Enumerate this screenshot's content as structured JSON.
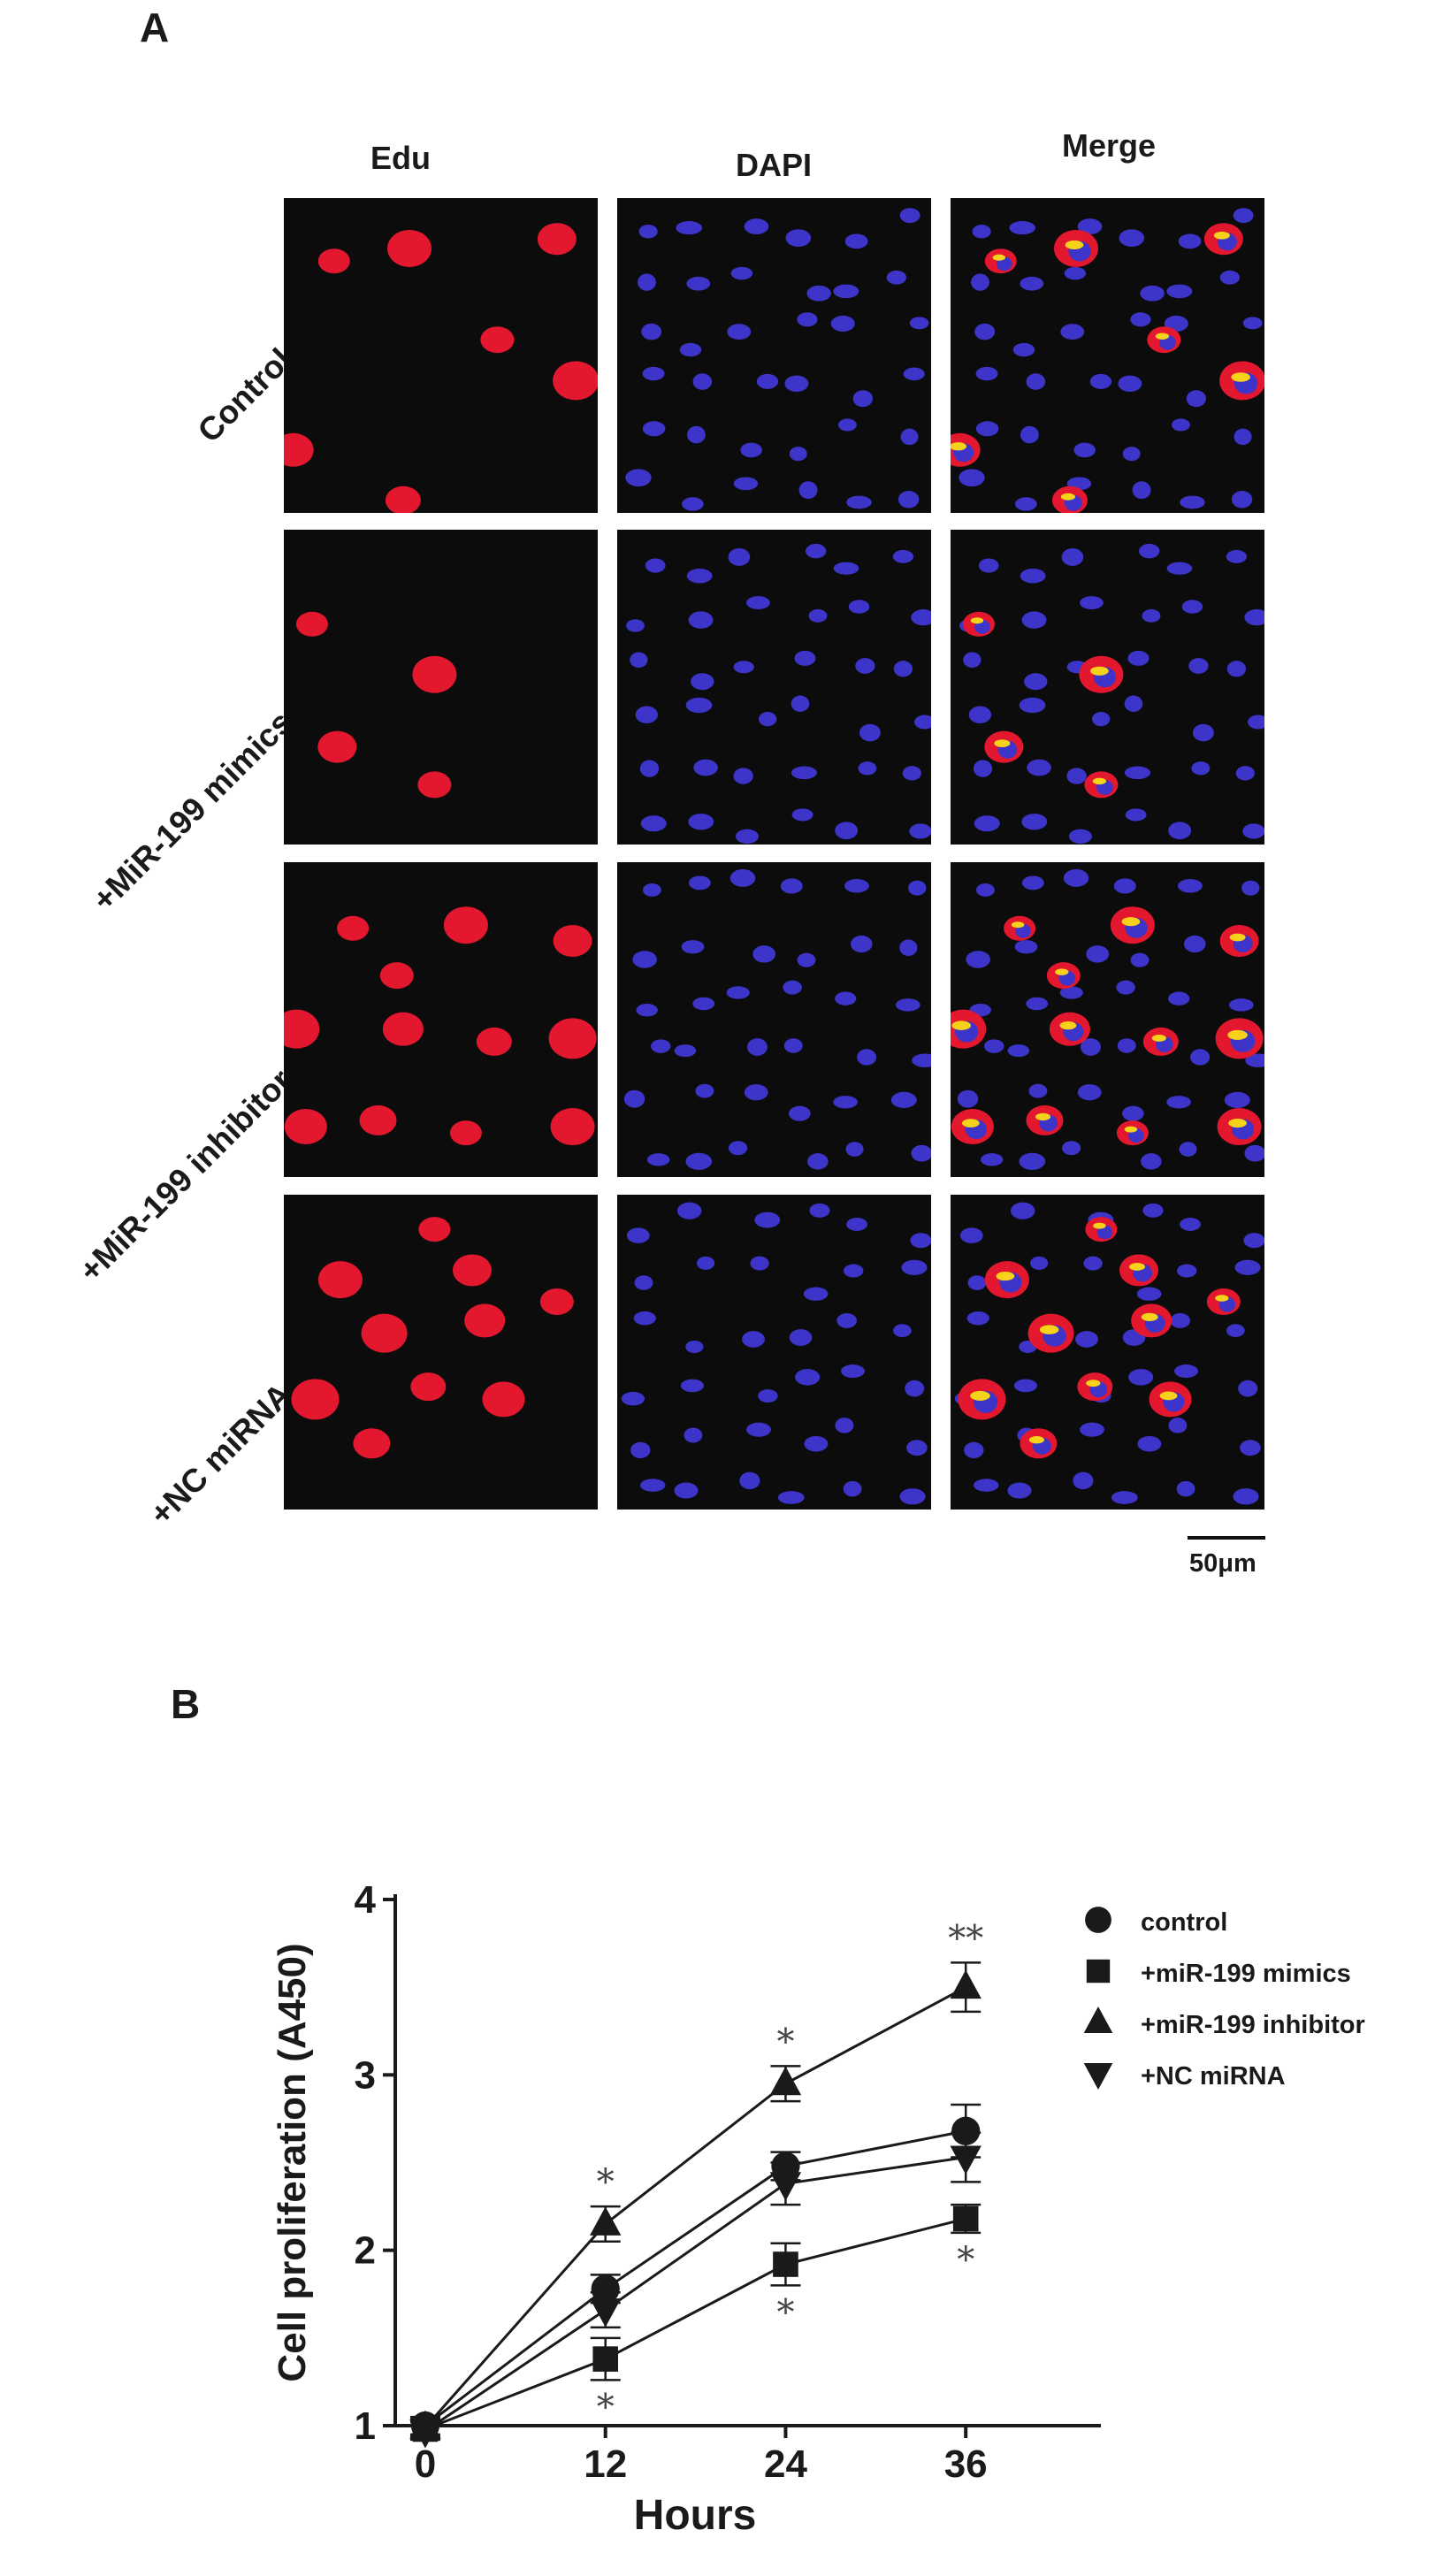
{
  "panel_a": {
    "letter": "A",
    "columns": [
      "Edu",
      "DAPI",
      "Merge"
    ],
    "rows": [
      "Control",
      "+MiR-199 mimics",
      "+MiR-199 inhibitor",
      "+NC miRNA"
    ],
    "scale_bar": "50μm",
    "colors": {
      "edu": "#e3172e",
      "dapi": "#3d34c9",
      "merge_core": "#f7d21a",
      "background": "#0c0c0c"
    }
  },
  "panel_b": {
    "letter": "B"
  },
  "chart_data": {
    "type": "line",
    "xlabel": "Hours",
    "ylabel": "Cell proliferation (A450)",
    "x": [
      0,
      12,
      24,
      36
    ],
    "xticks": [
      "0",
      "12",
      "24",
      "36"
    ],
    "yticks": [
      "1",
      "2",
      "3",
      "4"
    ],
    "xlim": [
      -2,
      45
    ],
    "ylim": [
      1,
      4
    ],
    "legend_position": "top-right",
    "series": [
      {
        "name": "control",
        "marker": "circle",
        "values": [
          1.0,
          1.78,
          2.48,
          2.68
        ],
        "errors": [
          0.05,
          0.08,
          0.08,
          0.15
        ],
        "annotations": [
          "",
          "",
          "",
          ""
        ]
      },
      {
        "name": "+miR-199 mimics",
        "marker": "square",
        "values": [
          0.98,
          1.38,
          1.92,
          2.18
        ],
        "errors": [
          0.05,
          0.12,
          0.12,
          0.08
        ],
        "annotations": [
          "",
          "*",
          "*",
          "*"
        ]
      },
      {
        "name": "+miR-199 inhibitor",
        "marker": "triangle-up",
        "values": [
          0.99,
          2.15,
          2.95,
          3.5
        ],
        "errors": [
          0.05,
          0.1,
          0.1,
          0.14
        ],
        "annotations": [
          "",
          "*",
          "*",
          "**"
        ]
      },
      {
        "name": "+NC miRNA",
        "marker": "triangle-down",
        "values": [
          0.97,
          1.66,
          2.38,
          2.53
        ],
        "errors": [
          0.05,
          0.1,
          0.12,
          0.14
        ],
        "annotations": [
          "",
          "",
          "",
          ""
        ]
      }
    ]
  }
}
